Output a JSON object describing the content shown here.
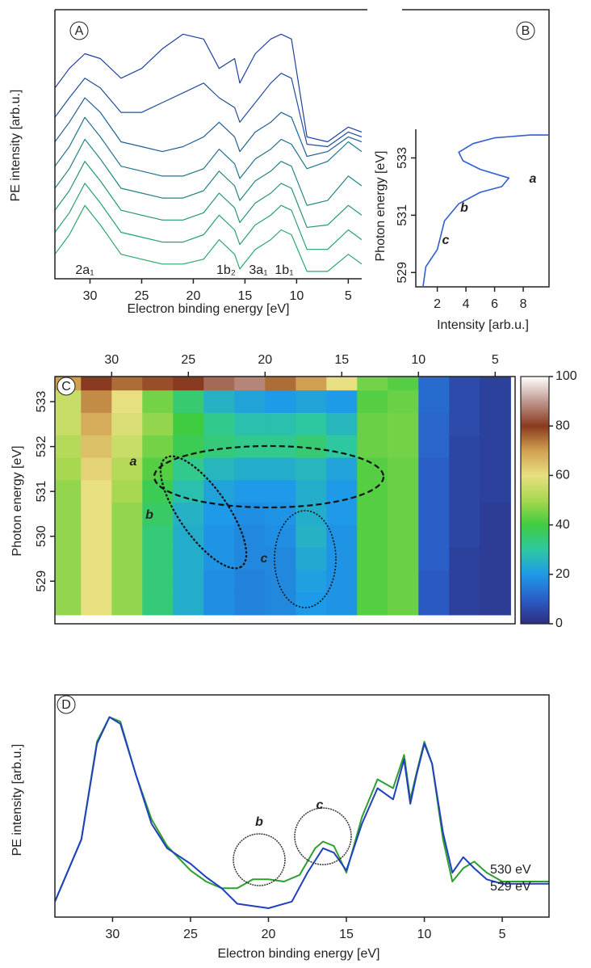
{
  "chart_data": [
    {
      "type": "waterfall",
      "panel_label": "A",
      "x_label": "Electron binding energy [eV]",
      "y_label": "PE intensity [arb.u.]",
      "xlim": [
        33.4,
        3.7
      ],
      "ylim": [
        0,
        110
      ],
      "xticks": [
        30,
        25,
        20,
        15,
        10,
        5
      ],
      "x": [
        33.4,
        32,
        30.5,
        29,
        27,
        25,
        23,
        21,
        19,
        17.5,
        16,
        15.5,
        14,
        12.5,
        11.5,
        10.5,
        9,
        7,
        5,
        3.7
      ],
      "series": [
        {
          "color": "#2aa868",
          "values": [
            10,
            18,
            30,
            22,
            10,
            8,
            6,
            6,
            8,
            16,
            10,
            4,
            12,
            16,
            20,
            18,
            3,
            3,
            10,
            6
          ]
        },
        {
          "color": "#27a070",
          "values": [
            19,
            27,
            39,
            31,
            19,
            17,
            15,
            15,
            18,
            26,
            20,
            14,
            22,
            26,
            30,
            28,
            12,
            12,
            20,
            16
          ]
        },
        {
          "color": "#24947a",
          "values": [
            28,
            36,
            48,
            40,
            28,
            26,
            24,
            24,
            27,
            35,
            29,
            23,
            31,
            35,
            39,
            37,
            21,
            22,
            30,
            26
          ]
        },
        {
          "color": "#218584",
          "values": [
            37,
            45,
            57,
            49,
            37,
            35,
            33,
            33,
            36,
            44,
            38,
            32,
            40,
            44,
            48,
            46,
            30,
            32,
            42,
            38
          ]
        },
        {
          "color": "#1f738c",
          "values": [
            46,
            54,
            66,
            58,
            46,
            44,
            42,
            42,
            45,
            53,
            47,
            41,
            49,
            53,
            57,
            55,
            45,
            48,
            56,
            52
          ]
        },
        {
          "color": "#1f6094",
          "values": [
            56,
            64,
            74,
            68,
            56,
            54,
            52,
            54,
            58,
            64,
            58,
            52,
            60,
            64,
            68,
            66,
            50,
            52,
            58,
            56
          ]
        },
        {
          "color": "#204e9c",
          "values": [
            66,
            74,
            82,
            78,
            68,
            68,
            72,
            76,
            80,
            74,
            70,
            64,
            72,
            80,
            84,
            82,
            55,
            54,
            60,
            58
          ]
        },
        {
          "color": "#2040a0",
          "values": [
            78,
            86,
            92,
            90,
            82,
            86,
            94,
            100,
            98,
            86,
            90,
            80,
            92,
            98,
            100,
            98,
            58,
            56,
            62,
            60
          ]
        }
      ],
      "annotations": [
        "2a₁",
        "1b₂",
        "3a₁",
        "1b₁"
      ]
    },
    {
      "type": "xyline",
      "panel_label": "B",
      "x_label": "Intensity [arb.u.]",
      "y_label": "Photon energy [eV]",
      "xlim": [
        0.5,
        9.8
      ],
      "ylim": [
        528.5,
        534.0
      ],
      "xticks": [
        2,
        4,
        6,
        8
      ],
      "yticks": [
        529,
        531,
        533
      ],
      "color": "#2f5fd0",
      "x": [
        1.0,
        1.2,
        1.6,
        2.0,
        2.2,
        2.5,
        3.0,
        3.5,
        5.0,
        6.5,
        7.0,
        5.0,
        3.8,
        3.5,
        4.5,
        6.0,
        8.5,
        9.8
      ],
      "y": [
        528.5,
        529.2,
        529.5,
        529.8,
        530.2,
        530.8,
        531.1,
        531.4,
        531.8,
        532.0,
        532.3,
        532.6,
        532.9,
        533.2,
        533.5,
        533.7,
        533.8,
        533.8
      ],
      "annotations": [
        "a",
        "b",
        "c"
      ]
    },
    {
      "type": "heatmap",
      "panel_label": "C",
      "y_label": "Photon energy [eV]",
      "xlim": [
        33.7,
        3.7
      ],
      "ylim": [
        528.05,
        533.56
      ],
      "xticks": [
        30,
        25,
        20,
        15,
        10,
        5
      ],
      "yticks": [
        529,
        530,
        531,
        532,
        533
      ],
      "zlim": [
        0,
        100
      ],
      "zticks": [
        0,
        20,
        40,
        60,
        80,
        100
      ],
      "colorscale": [
        [
          0,
          "#2e2d7f"
        ],
        [
          10,
          "#2a5fc8"
        ],
        [
          20,
          "#1e9ae8"
        ],
        [
          30,
          "#2ec8a0"
        ],
        [
          40,
          "#40cc40"
        ],
        [
          50,
          "#a8d850"
        ],
        [
          60,
          "#e8e080"
        ],
        [
          70,
          "#d0a050"
        ],
        [
          80,
          "#8a3a1e"
        ],
        [
          90,
          "#c09890"
        ],
        [
          100,
          "#ffffff"
        ]
      ],
      "x": [
        33,
        31,
        29,
        27,
        25,
        23,
        21,
        19,
        17,
        15,
        13,
        11,
        9,
        7,
        5
      ],
      "y": [
        533.5,
        533.0,
        532.5,
        532.0,
        531.5,
        531.0,
        530.5,
        530.0,
        529.5,
        529.0,
        528.5
      ],
      "z": [
        [
          70,
          80,
          75,
          78,
          80,
          85,
          88,
          75,
          70,
          60,
          45,
          42,
          12,
          6,
          4
        ],
        [
          55,
          72,
          60,
          45,
          35,
          25,
          22,
          20,
          22,
          20,
          42,
          44,
          12,
          6,
          4
        ],
        [
          55,
          68,
          58,
          48,
          40,
          32,
          28,
          28,
          30,
          26,
          44,
          45,
          11,
          6,
          4
        ],
        [
          52,
          65,
          55,
          45,
          38,
          34,
          32,
          32,
          35,
          30,
          44,
          45,
          11,
          5,
          4
        ],
        [
          50,
          62,
          52,
          42,
          32,
          26,
          24,
          24,
          26,
          22,
          42,
          44,
          10,
          5,
          4
        ],
        [
          48,
          60,
          50,
          38,
          28,
          22,
          20,
          20,
          24,
          20,
          42,
          44,
          10,
          5,
          4
        ],
        [
          48,
          60,
          48,
          36,
          25,
          20,
          18,
          19,
          24,
          20,
          42,
          44,
          10,
          5,
          3
        ],
        [
          48,
          60,
          48,
          34,
          24,
          19,
          17,
          18,
          25,
          19,
          42,
          44,
          10,
          5,
          3
        ],
        [
          48,
          60,
          48,
          34,
          24,
          19,
          17,
          17,
          23,
          19,
          42,
          44,
          10,
          4,
          3
        ],
        [
          48,
          60,
          48,
          34,
          24,
          18,
          16,
          17,
          21,
          19,
          42,
          44,
          9,
          4,
          3
        ],
        [
          48,
          60,
          48,
          34,
          24,
          18,
          16,
          17,
          20,
          19,
          42,
          44,
          9,
          4,
          3
        ]
      ],
      "annotations": [
        "a",
        "b",
        "c"
      ]
    },
    {
      "type": "line",
      "panel_label": "D",
      "x_label": "Electron binding energy [eV]",
      "y_label": "PE intensity [arb.u.]",
      "xlim": [
        33.7,
        2.0
      ],
      "ylim": [
        0,
        100
      ],
      "xticks": [
        30,
        25,
        20,
        15,
        10,
        5
      ],
      "series": [
        {
          "name": "530 eV",
          "color": "#2ca02c",
          "x": [
            33.7,
            32,
            31,
            30.2,
            29.5,
            28.5,
            27.5,
            26.5,
            25,
            24,
            23,
            22,
            21,
            20,
            19,
            18,
            17,
            16.5,
            15.8,
            15,
            14,
            13,
            12,
            11.3,
            10.9,
            10.5,
            10,
            9.5,
            8.8,
            8.2,
            7.5,
            6.8,
            6,
            5,
            2
          ],
          "values": [
            7,
            35,
            79,
            90,
            88,
            64,
            44,
            32,
            21,
            16,
            13,
            13,
            17,
            17,
            16,
            19,
            31,
            34,
            32,
            20,
            45,
            62,
            58,
            73,
            53,
            65,
            79,
            69,
            35,
            16,
            22,
            25,
            20,
            16,
            16
          ]
        },
        {
          "name": "529 eV",
          "color": "#2040c0",
          "x": [
            33.7,
            32,
            31,
            30.2,
            29.5,
            28.5,
            27.5,
            26.5,
            25,
            24,
            23,
            22,
            20,
            18.5,
            17.5,
            16.5,
            15.8,
            15,
            14,
            13,
            12,
            11.3,
            10.9,
            10.5,
            10,
            9.5,
            8.8,
            8.2,
            7.5,
            6.8,
            6,
            5,
            2
          ],
          "values": [
            7,
            35,
            78,
            90,
            87,
            64,
            42,
            31,
            24,
            18,
            13,
            6,
            4,
            7,
            20,
            31,
            29,
            21,
            42,
            58,
            53,
            71,
            51,
            64,
            78,
            69,
            38,
            20,
            27,
            22,
            17,
            15,
            15
          ]
        }
      ],
      "annotations": [
        "b",
        "c"
      ]
    }
  ]
}
